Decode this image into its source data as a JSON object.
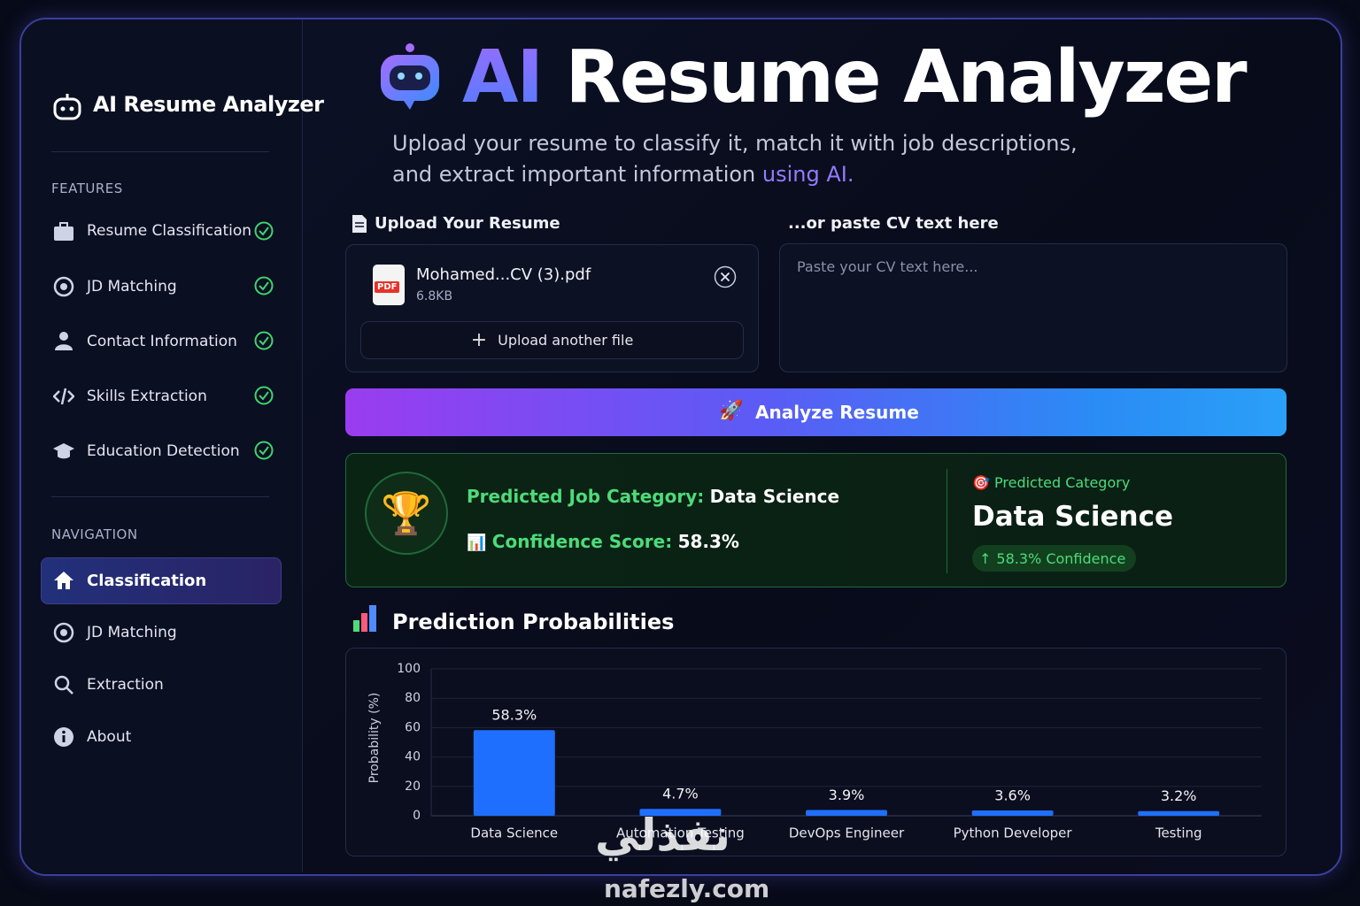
{
  "sidebar": {
    "brand": "AI Resume Analyzer",
    "features_heading": "FEATURES",
    "features": [
      "Resume Classification",
      "JD Matching",
      "Contact Information",
      "Skills Extraction",
      "Education Detection"
    ],
    "navigation_heading": "NAVIGATION",
    "navigation": [
      "Classification",
      "JD Matching",
      "Extraction",
      "About"
    ]
  },
  "header": {
    "title_accent": "AI",
    "title": "Resume Analyzer",
    "subtitle_line1": "Upload your resume to classify it, match it with job descriptions,",
    "subtitle_line2": "and extract important information",
    "subtitle_accent": "using AI."
  },
  "upload": {
    "label": "Upload Your Resume",
    "file_badge": "PDF",
    "file_name": "Mohamed...CV (3).pdf",
    "file_size": "6.8KB",
    "another": "Upload another file"
  },
  "paste": {
    "label": "...or paste CV text here",
    "placeholder": "Paste your CV text here..."
  },
  "analyze_button": "Analyze Resume",
  "result": {
    "category_label": "Predicted Job Category:",
    "category": "Data Science",
    "confidence_label": "Confidence Score:",
    "confidence": "58.3%",
    "side_label": "Predicted Category",
    "side_category": "Data Science",
    "side_confidence": "58.3% Confidence"
  },
  "chart_data": {
    "type": "bar",
    "title": "Prediction Probabilities",
    "y_label": "Probability (%)",
    "categories": [
      "Data Science",
      "Automation Testing",
      "DevOps Engineer",
      "Python Developer",
      "Testing"
    ],
    "values": [
      58.3,
      4.7,
      3.9,
      3.6,
      3.2
    ],
    "value_labels": [
      "58.3%",
      "4.7%",
      "3.9%",
      "3.6%",
      "3.2%"
    ],
    "color": "#1f6fff",
    "ylim": [
      0,
      100
    ],
    "yticks": [
      0,
      20,
      40,
      60,
      80,
      100
    ],
    "grid": true
  },
  "watermark": {
    "arabic": "نفذلي",
    "latin": "nafezly.com"
  }
}
